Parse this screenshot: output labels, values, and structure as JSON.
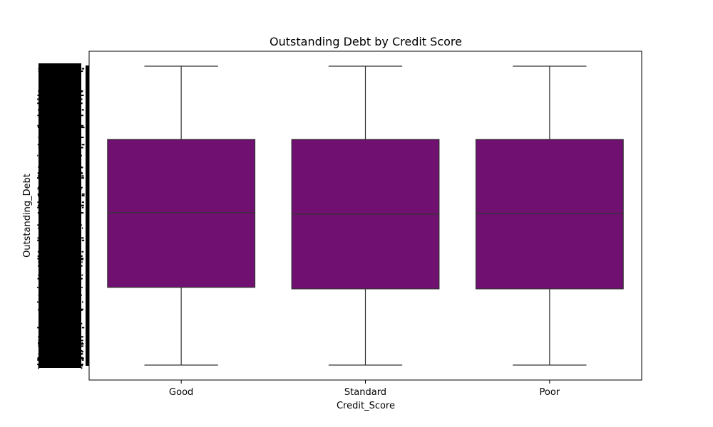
{
  "chart_data": {
    "type": "box",
    "title": "Outstanding Debt by Credit Score",
    "xlabel": "Credit_Score",
    "ylabel": "Outstanding_Debt",
    "categories": [
      "Good",
      "Standard",
      "Poor"
    ],
    "ytick_labels_legible": false,
    "box_color": "#701070",
    "line_color": "#333333",
    "grid": false,
    "boxes": [
      {
        "category": "Good",
        "whisker_low": 0.0,
        "q1": 0.26,
        "median": 0.51,
        "q3": 0.755,
        "whisker_high": 1.0
      },
      {
        "category": "Standard",
        "whisker_low": 0.0,
        "q1": 0.255,
        "median": 0.505,
        "q3": 0.755,
        "whisker_high": 1.0
      },
      {
        "category": "Poor",
        "whisker_low": 0.0,
        "q1": 0.255,
        "median": 0.508,
        "q3": 0.755,
        "whisker_high": 1.0
      }
    ],
    "ylim": [
      -0.05,
      1.05
    ]
  }
}
